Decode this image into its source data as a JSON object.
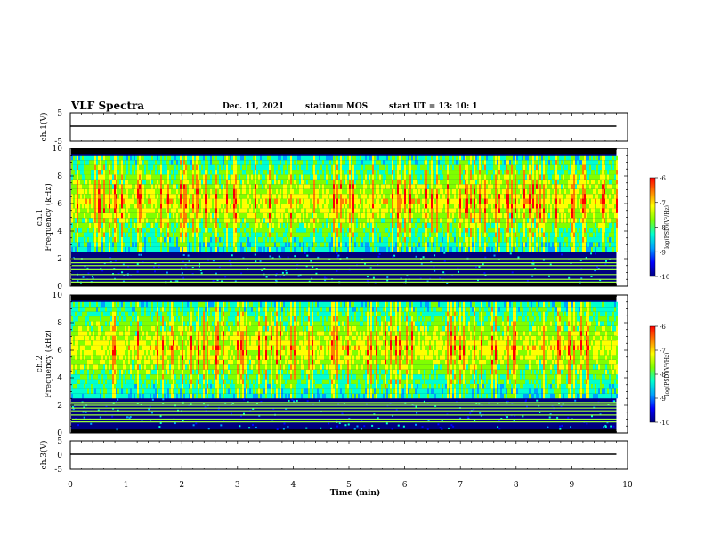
{
  "header": {
    "title": "VLF Spectra",
    "date": "Dec. 11, 2021",
    "station": "station= MOS",
    "start": "start UT =  13: 10: 1"
  },
  "colormap": [
    "#000080",
    "#0000ff",
    "#00a0ff",
    "#00ffd0",
    "#7fff00",
    "#ffff00",
    "#ff8000",
    "#ff0000",
    "#ffffff"
  ],
  "chart_data": [
    {
      "type": "line",
      "name": "waveform ch.1",
      "ylabel": "ch.1(V)",
      "ylim": [
        -5,
        5
      ],
      "yticks": [
        5,
        -5
      ],
      "xlim": [
        0,
        10
      ],
      "series": [
        {
          "x": [
            0,
            9.8
          ],
          "values": [
            0,
            0
          ]
        }
      ]
    },
    {
      "type": "heatmap",
      "name": "spectrogram ch.1",
      "ylabel": "ch.1",
      "ylabel2": "Frequency (kHz)",
      "ylim": [
        0,
        10
      ],
      "yticks": [
        0,
        2,
        4,
        6,
        8,
        10
      ],
      "xlim": [
        0,
        10
      ],
      "data_xmax": 9.8,
      "colorbar": {
        "label": "log(PSD)(V²/Hz)",
        "range": [
          -10,
          -6
        ],
        "ticks": [
          -6,
          -7,
          -8,
          -9,
          -10
        ]
      },
      "lines_khz": [
        0.3,
        0.5,
        0.85,
        1.2,
        1.5,
        1.7,
        2.0
      ],
      "band_khz": [
        2.5,
        9.3
      ]
    },
    {
      "type": "heatmap",
      "name": "spectrogram ch.2",
      "ylabel": "ch.2",
      "ylabel2": "Frequency (kHz)",
      "ylim": [
        0,
        10
      ],
      "yticks": [
        0,
        2,
        4,
        6,
        8,
        10
      ],
      "xlim": [
        0,
        10
      ],
      "data_xmax": 9.8,
      "colorbar": {
        "label": "log(PSD)(V²/Hz)",
        "range": [
          -10,
          -6
        ],
        "ticks": [
          -6,
          -7,
          -8,
          -9,
          -10
        ]
      },
      "lines_khz": [
        0.8,
        1.0,
        1.3,
        1.6,
        1.8,
        2.0,
        2.2
      ],
      "band_khz": [
        2.5,
        9.3
      ]
    },
    {
      "type": "line",
      "name": "waveform ch.3",
      "ylabel": "ch.3(V)",
      "ylim": [
        -5,
        5
      ],
      "yticks": [
        5,
        0,
        -5
      ],
      "xlim": [
        0,
        10
      ],
      "xlabel": "Time (min)",
      "xticks": [
        0,
        1,
        2,
        3,
        4,
        5,
        6,
        7,
        8,
        9,
        10
      ],
      "series": [
        {
          "x": [
            0,
            9.8
          ],
          "values": [
            0,
            0
          ]
        }
      ]
    }
  ]
}
